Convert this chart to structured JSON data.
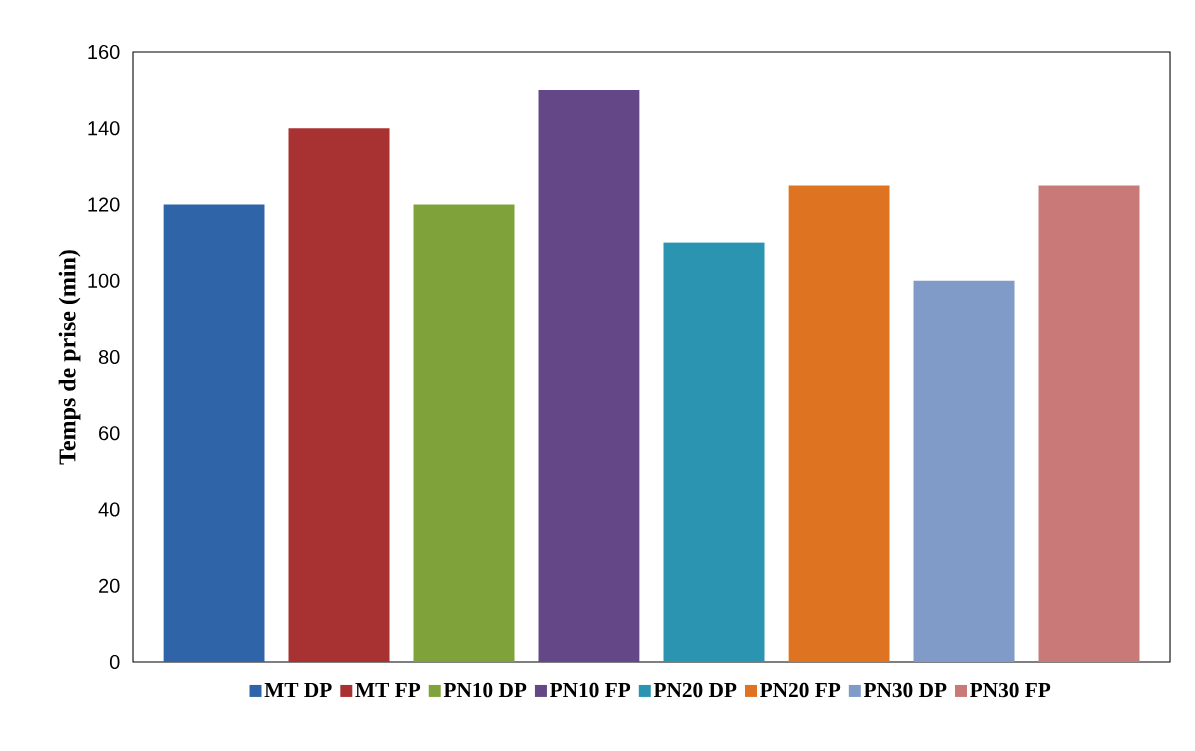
{
  "chart_data": {
    "type": "bar",
    "ylabel": "Temps de prise (min)",
    "categories": [
      null
    ],
    "series": [
      {
        "name": "MT DP",
        "color": "#2f64a8",
        "values": [
          120
        ]
      },
      {
        "name": "MT FP",
        "color": "#a83131",
        "values": [
          140
        ]
      },
      {
        "name": "PN10 DP",
        "color": "#7fa23a",
        "values": [
          120
        ]
      },
      {
        "name": "PN10 FP",
        "color": "#634786",
        "values": [
          150
        ]
      },
      {
        "name": "PN20 DP",
        "color": "#2b94b0",
        "values": [
          110
        ]
      },
      {
        "name": "PN20 FP",
        "color": "#de7422",
        "values": [
          125
        ]
      },
      {
        "name": "PN30 DP",
        "color": "#809bc8",
        "values": [
          100
        ]
      },
      {
        "name": "PN30 FP",
        "color": "#c97a78",
        "values": [
          125
        ]
      }
    ],
    "ylim": [
      0,
      160
    ],
    "yticks": [
      0,
      20,
      40,
      60,
      80,
      100,
      120,
      140,
      160
    ],
    "grid": false,
    "legend": "bottom"
  }
}
